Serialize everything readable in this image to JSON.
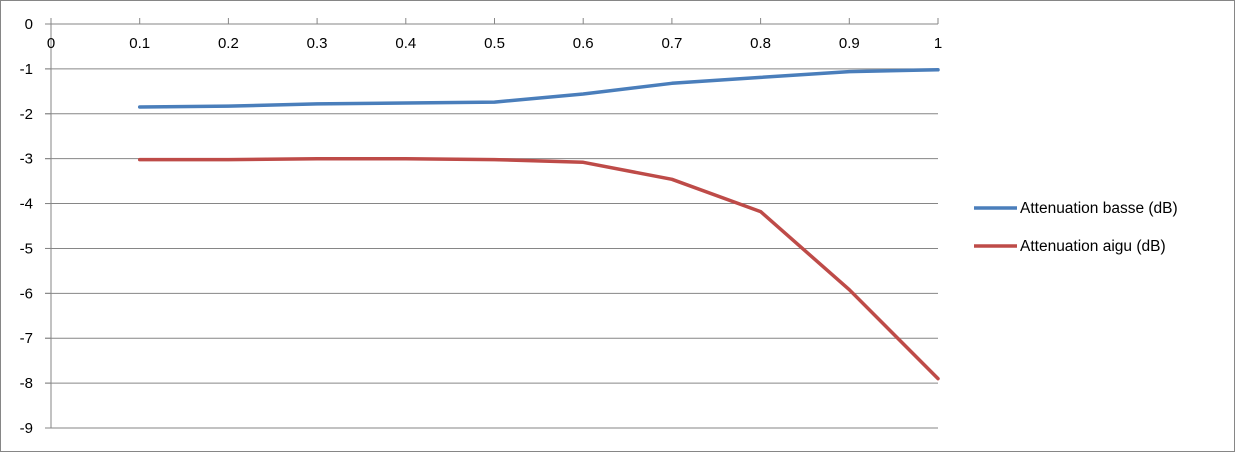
{
  "chart_data": {
    "type": "line",
    "title": "",
    "xlabel": "",
    "ylabel": "",
    "x": [
      0.1,
      0.2,
      0.3,
      0.4,
      0.5,
      0.6,
      0.7,
      0.8,
      0.9,
      1
    ],
    "xlim": [
      0,
      1
    ],
    "ylim": [
      -9,
      0
    ],
    "x_tick_labels": [
      "0",
      "0.1",
      "0.2",
      "0.3",
      "0.4",
      "0.5",
      "0.6",
      "0.7",
      "0.8",
      "0.9",
      "1"
    ],
    "y_tick_labels": [
      "0",
      "-1",
      "-2",
      "-3",
      "-4",
      "-5",
      "-6",
      "-7",
      "-8",
      "-9"
    ],
    "x_axis_position": "top",
    "grid": "horizontal",
    "legend_position": "right",
    "series": [
      {
        "name": "Attenuation basse (dB)",
        "color": "#4a7ebb",
        "values": [
          -1.85,
          -1.83,
          -1.78,
          -1.76,
          -1.74,
          -1.56,
          -1.32,
          -1.19,
          -1.06,
          -1.02
        ]
      },
      {
        "name": "Attenuation aigu (dB)",
        "color": "#be4b48",
        "values": [
          -3.02,
          -3.02,
          -3.0,
          -3.0,
          -3.02,
          -3.08,
          -3.46,
          -4.18,
          -5.92,
          -7.9
        ]
      }
    ]
  }
}
